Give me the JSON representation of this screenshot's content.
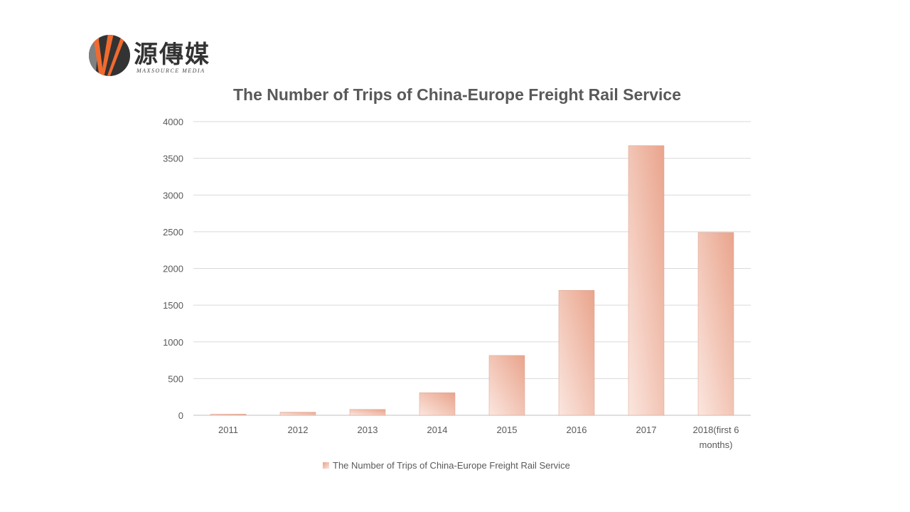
{
  "logo": {
    "chinese": "源傳媒",
    "english": "MAXSOURCE MEDIA"
  },
  "chart_data": {
    "type": "bar",
    "title": "The Number of Trips of China-Europe Freight Rail Service",
    "categories": [
      "2011",
      "2012",
      "2013",
      "2014",
      "2015",
      "2016",
      "2017",
      "2018(first 6 months)"
    ],
    "category_lines": [
      [
        "2011"
      ],
      [
        "2012"
      ],
      [
        "2013"
      ],
      [
        "2014"
      ],
      [
        "2015"
      ],
      [
        "2016"
      ],
      [
        "2017"
      ],
      [
        "2018(first 6",
        "months)"
      ]
    ],
    "series": [
      {
        "name": "The Number of Trips of China-Europe Freight Rail Service",
        "values": [
          17,
          42,
          80,
          308,
          815,
          1702,
          3673,
          2490
        ]
      }
    ],
    "ylim": [
      0,
      4000
    ],
    "yticks": [
      "0",
      "500",
      "1000",
      "1500",
      "2000",
      "2500",
      "3000",
      "3500",
      "4000"
    ],
    "grid": true,
    "legend_position": "bottom",
    "colors": {
      "bar_dark": "#e9a48c",
      "bar_light": "#fbe6df",
      "grid": "#d9d9d9",
      "text": "#595959"
    }
  }
}
